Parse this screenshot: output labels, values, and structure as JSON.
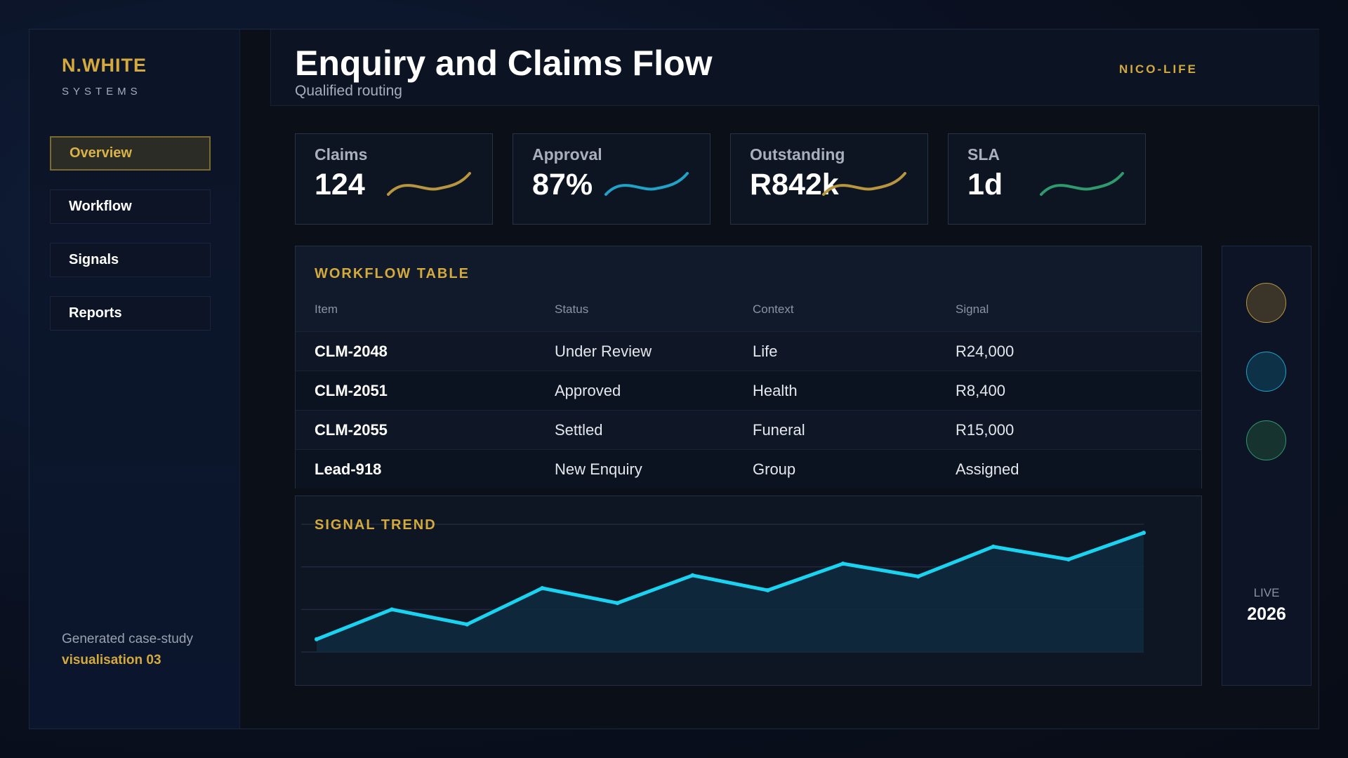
{
  "brand": {
    "name": "N.WHITE",
    "sub": "SYSTEMS"
  },
  "nav": {
    "items": [
      {
        "label": "Overview",
        "active": true
      },
      {
        "label": "Workflow",
        "active": false
      },
      {
        "label": "Signals",
        "active": false
      },
      {
        "label": "Reports",
        "active": false
      }
    ]
  },
  "footer": {
    "note": "Generated case-study",
    "link": "visualisation 03"
  },
  "header": {
    "title": "Enquiry and Claims Flow",
    "subtitle": "Qualified routing",
    "tenant": "NICO-LIFE"
  },
  "kpis": [
    {
      "label": "Claims",
      "value": "124",
      "color": "#b8963f"
    },
    {
      "label": "Approval",
      "value": "87%",
      "color": "#1fa3c8"
    },
    {
      "label": "Outstanding",
      "value": "R842k",
      "color": "#b8963f"
    },
    {
      "label": "SLA",
      "value": "1d",
      "color": "#2f9a6e"
    }
  ],
  "workflow": {
    "title": "WORKFLOW TABLE",
    "columns": [
      "Item",
      "Status",
      "Context",
      "Signal"
    ],
    "rows": [
      [
        "CLM-2048",
        "Under Review",
        "Life",
        "R24,000"
      ],
      [
        "CLM-2051",
        "Approved",
        "Health",
        "R8,400"
      ],
      [
        "CLM-2055",
        "Settled",
        "Funeral",
        "R15,000"
      ],
      [
        "Lead-918",
        "New Enquiry",
        "Group",
        "Assigned"
      ]
    ]
  },
  "trend": {
    "title": "SIGNAL TREND"
  },
  "chart_data": {
    "type": "line",
    "title": "SIGNAL TREND",
    "x": [
      1,
      2,
      3,
      4,
      5,
      6,
      7,
      8,
      9,
      10,
      11,
      12
    ],
    "series": [
      {
        "values": [
          12,
          40,
          26,
          60,
          46,
          72,
          58,
          83,
          71,
          99,
          87,
          112
        ]
      }
    ],
    "ylim": [
      0,
      120
    ],
    "grid": true,
    "color": "#1ad3f0"
  },
  "rail": {
    "dots": [
      {
        "name": "gold-status-dot",
        "fill": "#3a3528",
        "stroke": "#b8963f"
      },
      {
        "name": "cyan-status-dot",
        "fill": "#0d3248",
        "stroke": "#1fa3c8"
      },
      {
        "name": "green-status-dot",
        "fill": "#173330",
        "stroke": "#2f9a6e"
      }
    ],
    "live_label": "LIVE",
    "year": "2026"
  }
}
